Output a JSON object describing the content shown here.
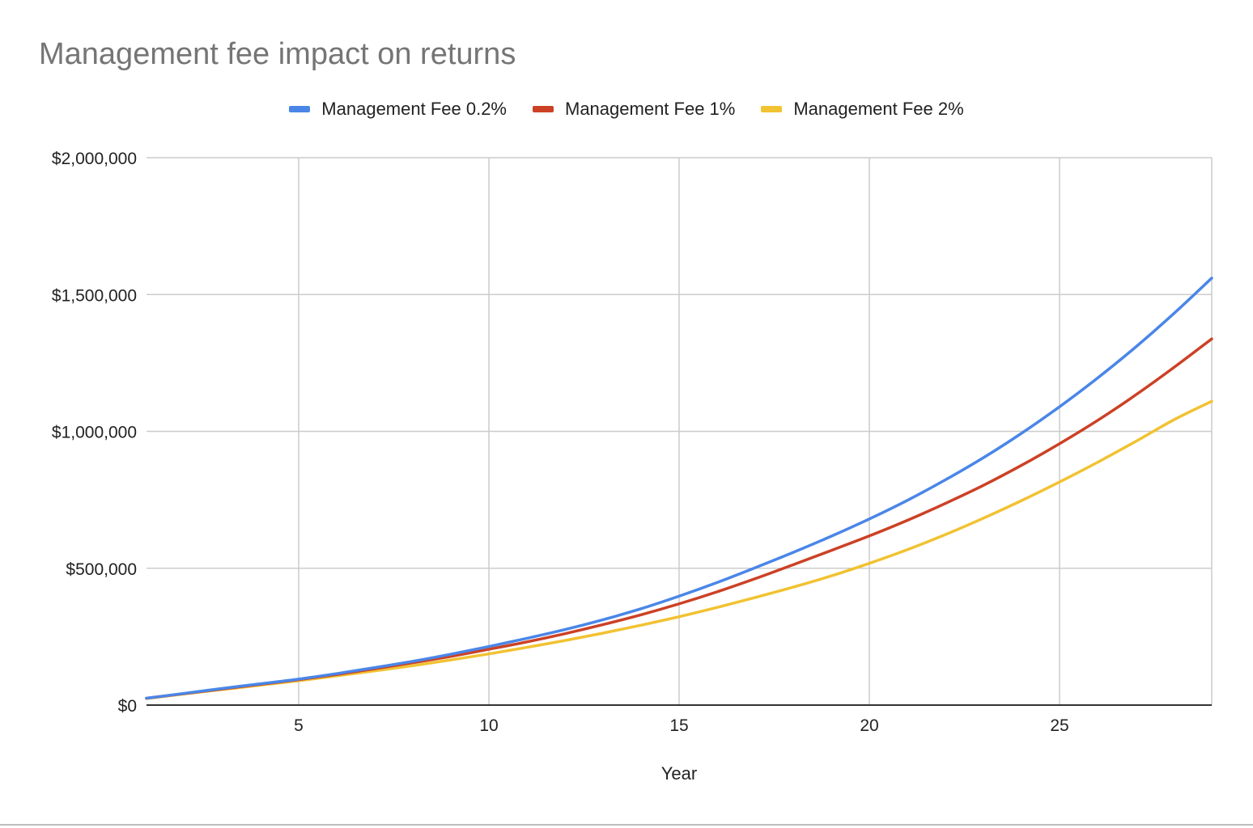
{
  "chart_data": {
    "type": "line",
    "title": "Management fee impact on returns",
    "xlabel": "Year",
    "ylabel": "",
    "xlim": [
      1,
      29
    ],
    "ylim": [
      0,
      2000000
    ],
    "x_ticks": [
      5,
      10,
      15,
      20,
      25
    ],
    "y_ticks": [
      0,
      500000,
      1000000,
      1500000,
      2000000
    ],
    "y_tick_labels": [
      "$0",
      "$500,000",
      "$1,000,000",
      "$1,500,000",
      "$2,000,000"
    ],
    "grid": true,
    "legend_position": "top",
    "x": [
      1,
      2,
      3,
      4,
      5,
      6,
      7,
      8,
      9,
      10,
      11,
      12,
      13,
      14,
      15,
      16,
      17,
      18,
      19,
      20,
      21,
      22,
      23,
      24,
      25,
      26,
      27,
      28,
      29
    ],
    "series": [
      {
        "name": "Management Fee 0.2%",
        "color": "#4a86e8",
        "values": [
          25000,
          43000,
          61000,
          78000,
          95000,
          115000,
          137000,
          160000,
          186000,
          214000,
          244000,
          276000,
          312000,
          352000,
          398000,
          448000,
          502000,
          558000,
          617000,
          680000,
          748000,
          823000,
          904000,
          993000,
          1090000,
          1195000,
          1308000,
          1430000,
          1560000
        ]
      },
      {
        "name": "Management Fee 1%",
        "color": "#cc4125",
        "values": [
          25000,
          42000,
          59000,
          76000,
          93000,
          112000,
          133000,
          155000,
          178000,
          204000,
          231000,
          261000,
          294000,
          330000,
          370000,
          414000,
          462000,
          513000,
          565000,
          618000,
          675000,
          737000,
          803000,
          876000,
          955000,
          1040000,
          1133000,
          1233000,
          1338000
        ]
      },
      {
        "name": "Management Fee 2%",
        "color": "#f1c232",
        "values": [
          24000,
          41000,
          57000,
          73000,
          89000,
          107000,
          125000,
          144000,
          165000,
          187000,
          211000,
          236000,
          263000,
          292000,
          323000,
          357000,
          393000,
          431000,
          472000,
          518000,
          568000,
          623000,
          683000,
          747000,
          815000,
          887000,
          963000,
          1042000,
          1110000
        ]
      }
    ]
  }
}
